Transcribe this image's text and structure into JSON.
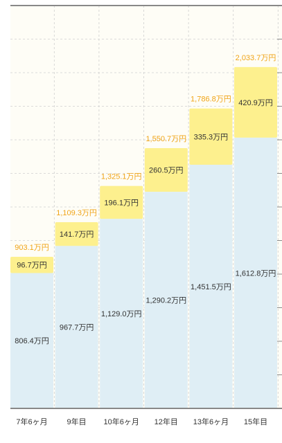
{
  "chart_data": {
    "type": "bar",
    "stacked": true,
    "categories": [
      "7年6ヶ月",
      "9年目",
      "10年6ヶ月",
      "12年目",
      "13年6ヶ月",
      "15年目"
    ],
    "series": [
      {
        "values": [
          806.4,
          967.7,
          1129.0,
          1290.2,
          1451.5,
          1612.8
        ],
        "labels": [
          "806.4万円",
          "967.7万円",
          "1,129.0万円",
          "1,290.2万円",
          "1,451.5万円",
          "1,612.8万円"
        ]
      },
      {
        "values": [
          96.7,
          141.7,
          196.1,
          260.5,
          335.3,
          420.9
        ],
        "labels": [
          "96.7万円",
          "141.7万円",
          "196.1万円",
          "260.5万円",
          "335.3万円",
          "420.9万円"
        ]
      }
    ],
    "totals": [
      903.1,
      1109.3,
      1325.1,
      1550.7,
      1786.8,
      2033.7
    ],
    "total_labels": [
      "903.1万円",
      "1,109.3万円",
      "1,325.1万円",
      "1,550.7万円",
      "1,786.8万円",
      "2,033.7万円"
    ],
    "ylim": [
      0,
      2400
    ],
    "grid": true,
    "colors": {
      "background": "#fefdf6",
      "base": "#dfeef5",
      "top": "#fdf08e",
      "total_label": "#f0a417",
      "text": "#333333",
      "grid": "#cfcfcf",
      "axis": "#888888"
    }
  }
}
